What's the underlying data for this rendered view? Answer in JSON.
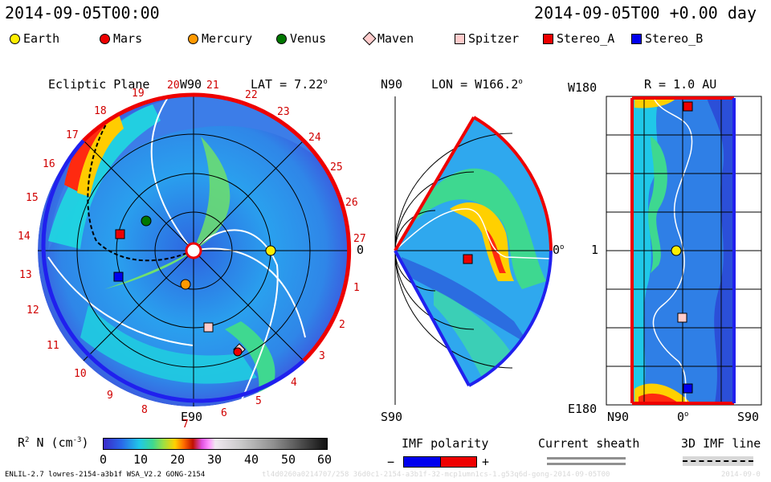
{
  "header": {
    "left_timestamp": "2014-09-05T00:00",
    "right_timestamp": "2014-09-05T00 +0.00 day"
  },
  "legend": [
    {
      "label": "Earth",
      "color": "#ffee00",
      "shape": "circle"
    },
    {
      "label": "Mars",
      "color": "#ee0000",
      "shape": "circle"
    },
    {
      "label": "Mercury",
      "color": "#ff9900",
      "shape": "circle"
    },
    {
      "label": "Venus",
      "color": "#007700",
      "shape": "circle"
    },
    {
      "label": "Maven",
      "color": "#ffcccc",
      "shape": "diamond"
    },
    {
      "label": "Spitzer",
      "color": "#ffcccc",
      "shape": "square"
    },
    {
      "label": "Stereo_A",
      "color": "#ee0000",
      "shape": "square"
    },
    {
      "label": "Stereo_B",
      "color": "#0000ee",
      "shape": "square"
    }
  ],
  "ecliptic": {
    "title": "Ecliptic Plane",
    "lat": "LAT = 7.22",
    "degree_mark": "o",
    "top_label": "W90",
    "bottom_label": "E90",
    "right_label": "0",
    "rotation_numbers": [
      "19",
      "20",
      "21",
      "22",
      "23",
      "24",
      "25",
      "26",
      "27",
      "1",
      "2",
      "3",
      "4",
      "5",
      "6",
      "7",
      "8",
      "9",
      "10",
      "11",
      "12",
      "13",
      "14",
      "15",
      "16",
      "17",
      "18"
    ]
  },
  "meridional": {
    "title": "LON = W166.2",
    "degree_mark": "o",
    "top_left": "N90",
    "bottom_left": "S90",
    "right_label": "0",
    "right_degree": "o"
  },
  "radial": {
    "title": "R = 1.0 AU",
    "top_left": "W180",
    "mid_left": "1",
    "bottom_left": "E180",
    "bottom_labels": {
      "left": "N90",
      "center": "0",
      "center_degree": "o",
      "right": "S90"
    }
  },
  "colorbar": {
    "label": "R",
    "label_sup": "2",
    "label_rest": " N (cm",
    "label_sup2": "-3",
    "label_end": ")",
    "ticks": [
      "0",
      "10",
      "20",
      "30",
      "40",
      "50",
      "60"
    ]
  },
  "imf": {
    "title": "IMF polarity",
    "minus": "−",
    "plus": "+",
    "minus_color": "#0000ee",
    "plus_color": "#ee0000"
  },
  "sheath": {
    "title": "Current sheath"
  },
  "imf3d": {
    "title": "3D IMF line"
  },
  "footer": {
    "left": "ENLIL-2.7 lowres-2154-a3b1f WSA_V2.2 GONG-2154",
    "right_faint": "tl4d0260a0214707/258 36d0c1-2154-a3b1f-32-mcp1umn1cs-1.g53q6d-gong-2014-09-05T00",
    "date_faint": "2014-09-0"
  }
}
